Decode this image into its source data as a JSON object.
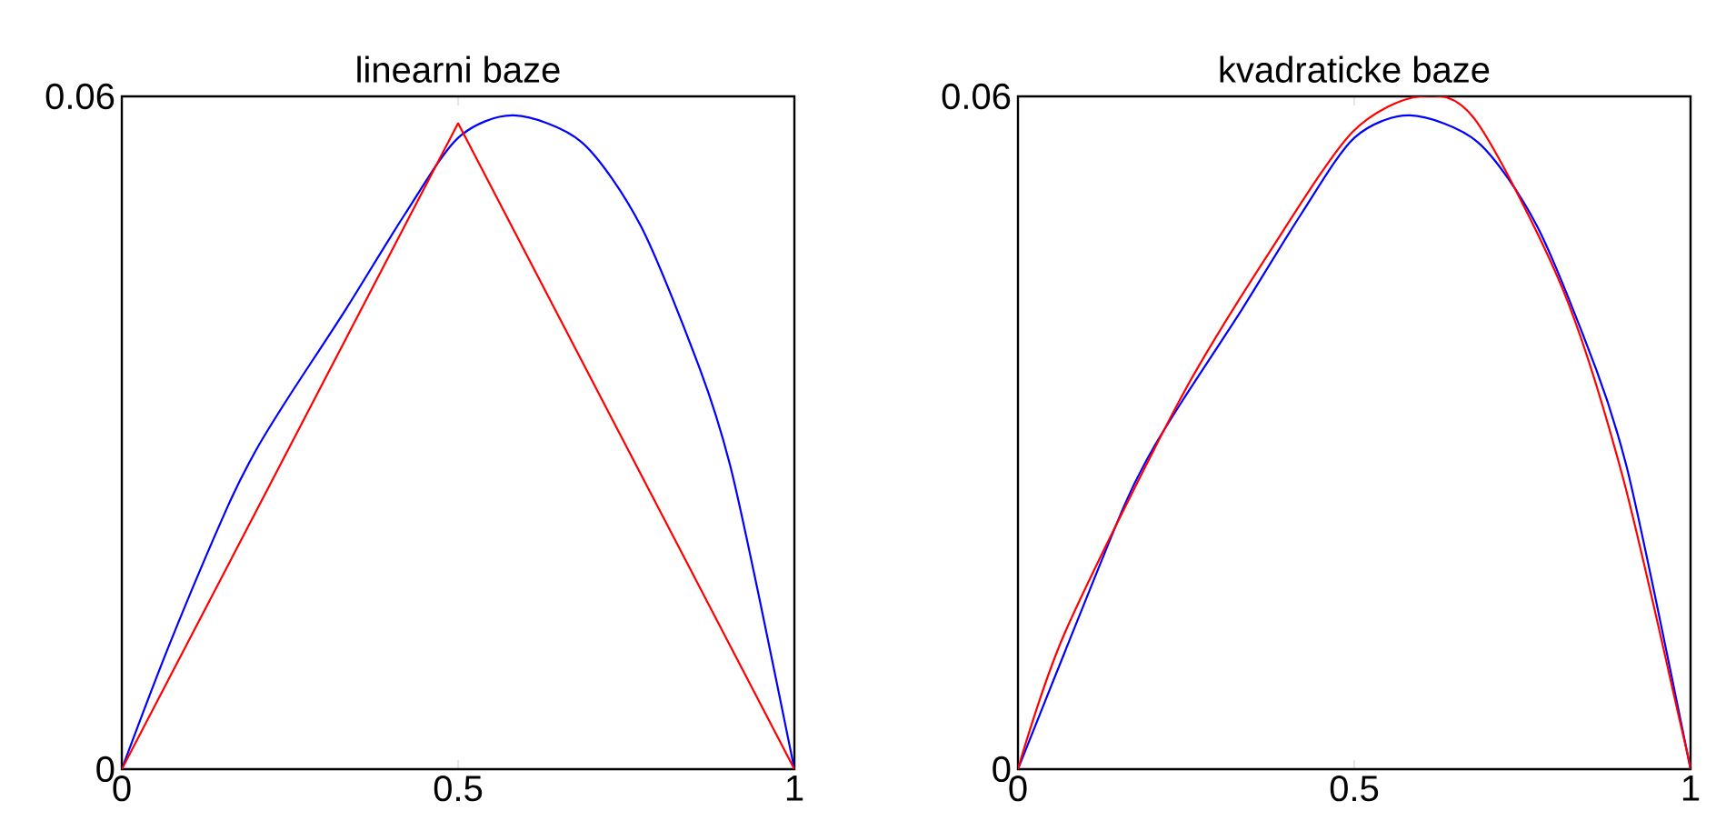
{
  "chart_data": [
    {
      "type": "line",
      "title": "linearni baze",
      "xlim": [
        0,
        1
      ],
      "ylim": [
        0,
        0.06
      ],
      "xticks": [
        0,
        0.5,
        1
      ],
      "yticks": [
        0,
        0.06
      ],
      "series": [
        {
          "color": "#0000ff",
          "x": [
            0,
            0.07,
            0.158,
            0.2,
            0.246,
            0.333,
            0.421,
            0.5,
            0.583,
            0.684,
            0.772,
            0.86,
            0.904,
            0.947,
            1
          ],
          "values": [
            0,
            0.011,
            0.0235,
            0.0285,
            0.033,
            0.041,
            0.0495,
            0.0563,
            0.0583,
            0.0559,
            0.0484,
            0.0356,
            0.0272,
            0.0155,
            0
          ]
        },
        {
          "color": "#ff0000",
          "x": [
            0,
            0.5,
            1
          ],
          "values": [
            0,
            0.0576,
            0
          ]
        }
      ]
    },
    {
      "type": "line",
      "title": "kvadraticke baze",
      "xlim": [
        0,
        1
      ],
      "ylim": [
        0,
        0.06
      ],
      "xticks": [
        0,
        0.5,
        1
      ],
      "yticks": [
        0,
        0.06
      ],
      "series": [
        {
          "color": "#0000ff",
          "x": [
            0,
            0.07,
            0.158,
            0.2,
            0.246,
            0.333,
            0.421,
            0.5,
            0.583,
            0.684,
            0.772,
            0.86,
            0.904,
            0.947,
            1
          ],
          "values": [
            0,
            0.0105,
            0.0235,
            0.0285,
            0.033,
            0.041,
            0.0495,
            0.0563,
            0.0583,
            0.0559,
            0.0484,
            0.0356,
            0.0272,
            0.0155,
            0
          ]
        },
        {
          "color": "#ff0000",
          "x": [
            0,
            0.07,
            0.244,
            0.375,
            0.497,
            0.598,
            0.68,
            0.81,
            0.899,
            0.986,
            1
          ],
          "values": [
            0,
            0.0122,
            0.0333,
            0.0462,
            0.0568,
            0.06,
            0.0579,
            0.0428,
            0.0261,
            0.0038,
            0
          ]
        }
      ]
    }
  ]
}
